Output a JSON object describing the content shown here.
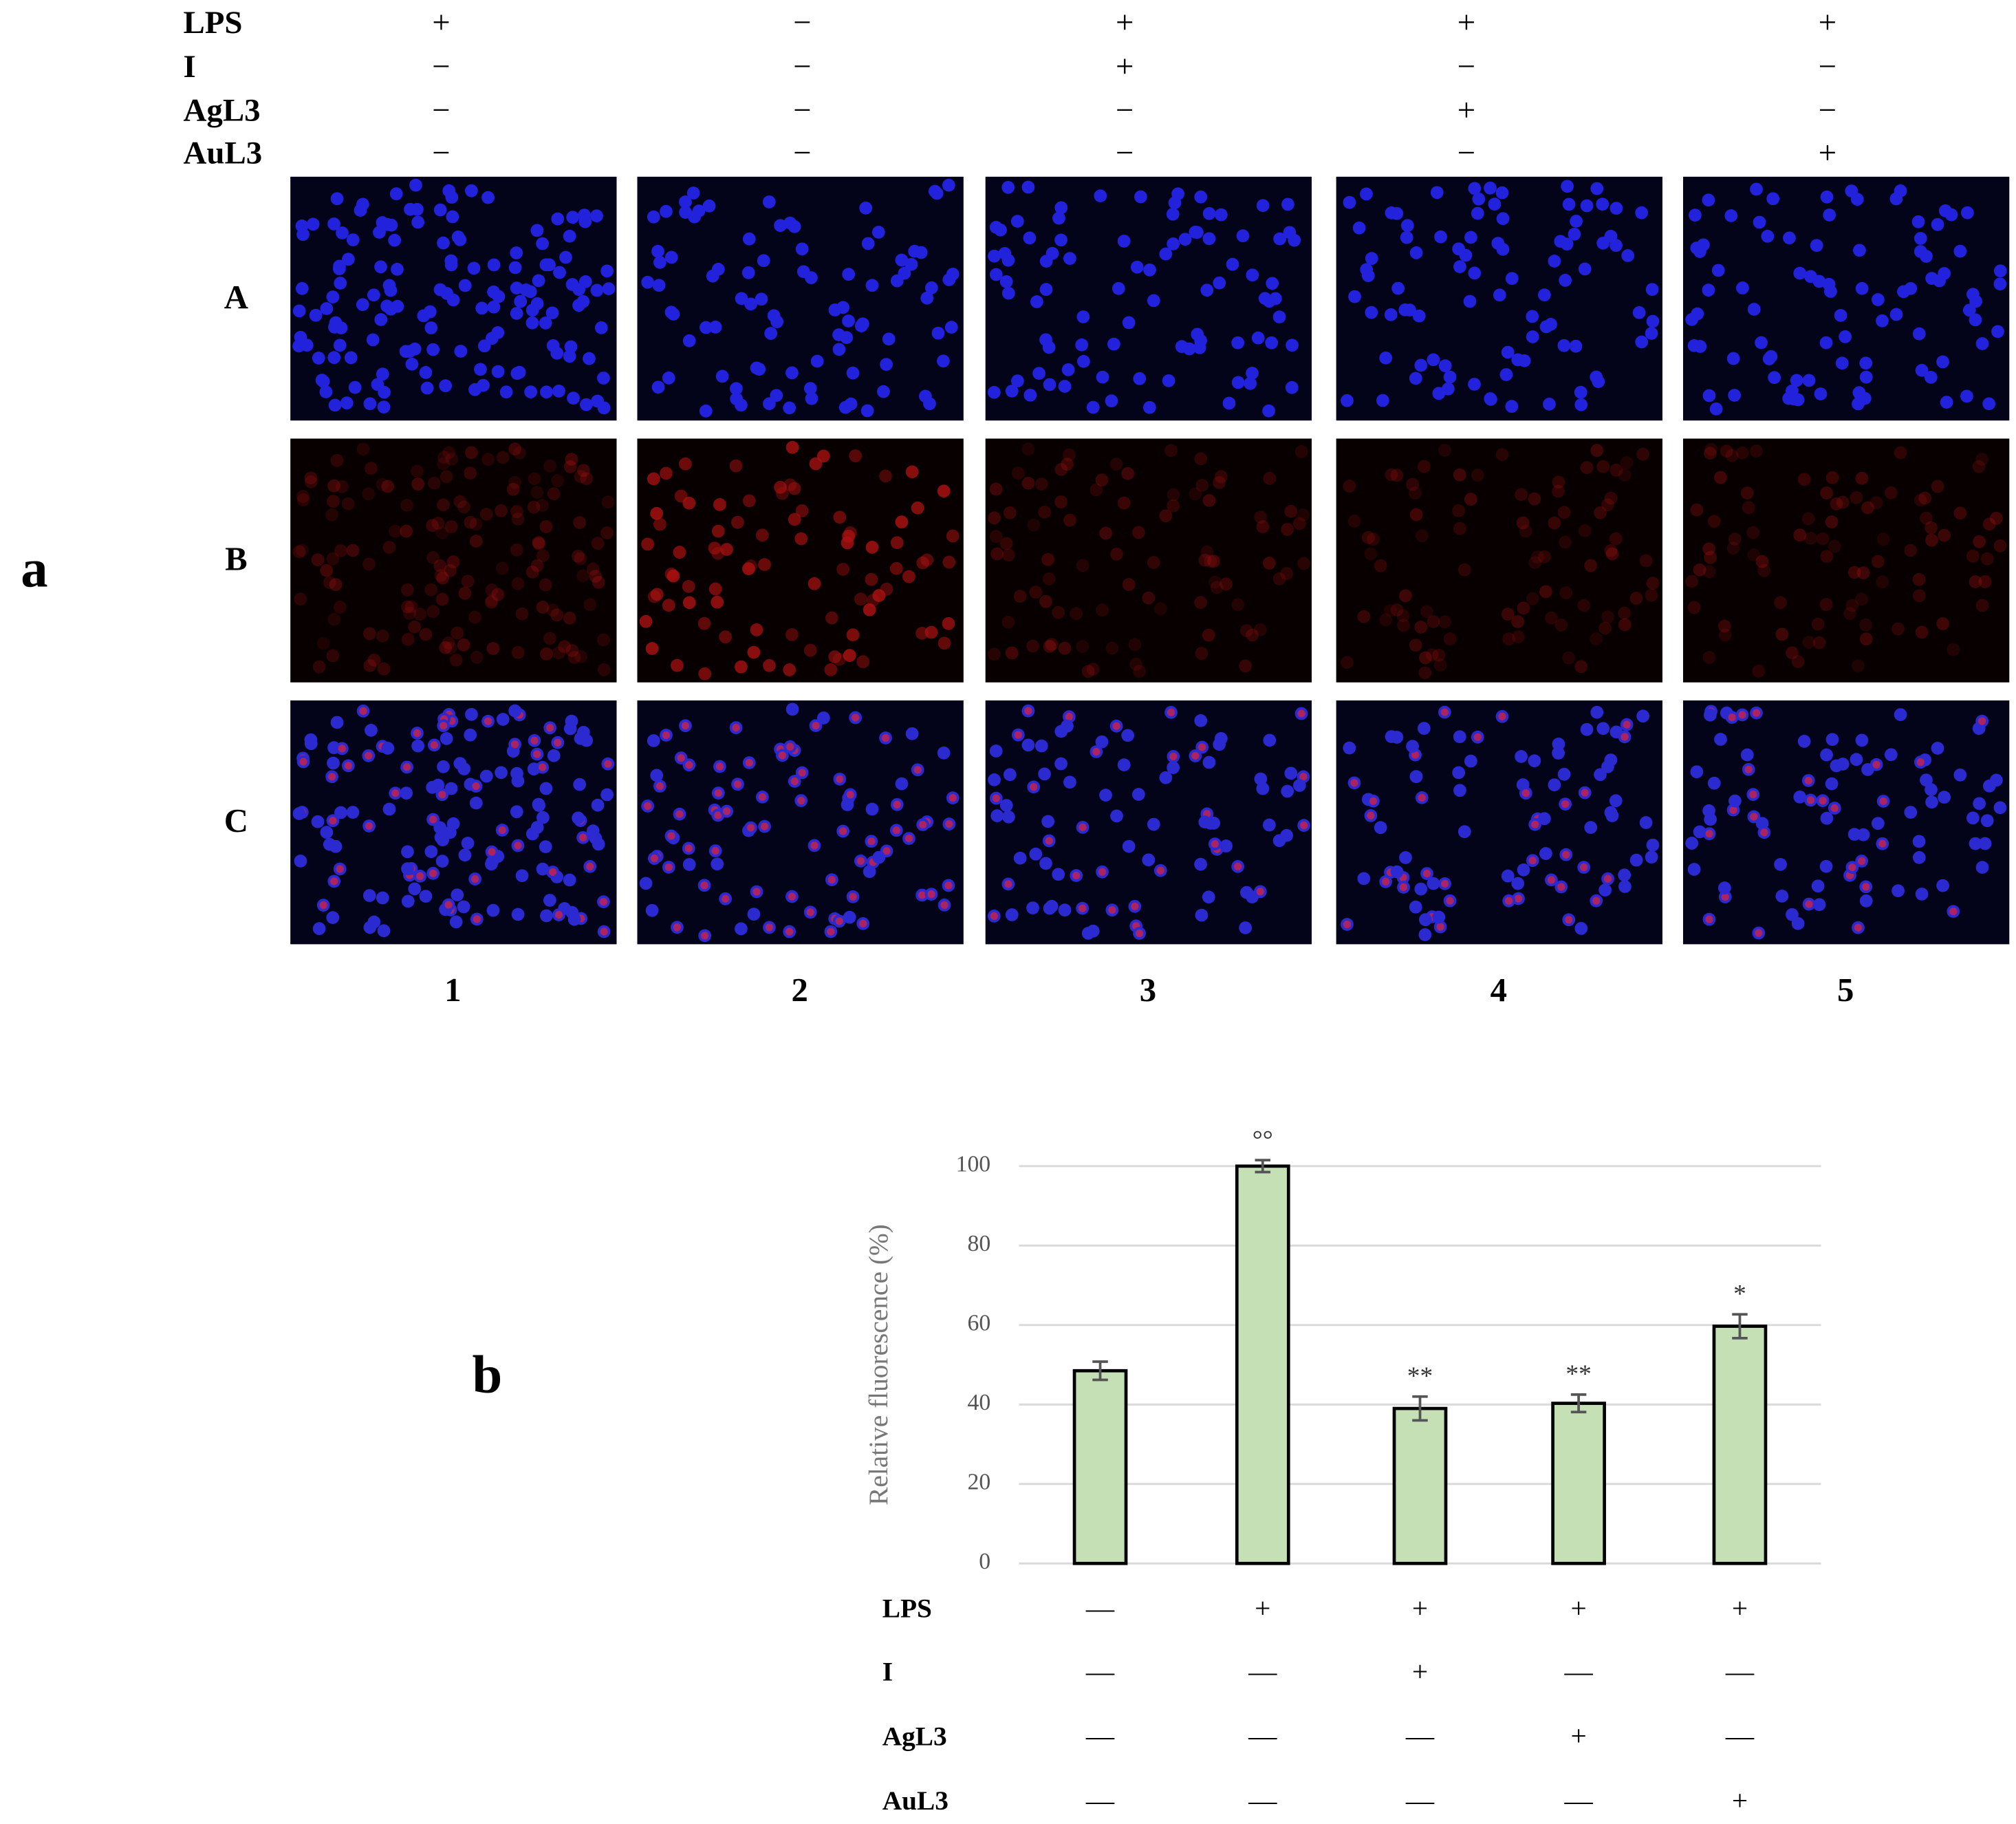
{
  "panel_a": {
    "label": "a",
    "treatments": [
      {
        "name": "LPS",
        "signs": [
          "+",
          "−",
          "+",
          "+",
          "+"
        ]
      },
      {
        "name": "I",
        "signs": [
          "−",
          "−",
          "+",
          "−",
          "−"
        ]
      },
      {
        "name": "AgL3",
        "signs": [
          "−",
          "−",
          "−",
          "+",
          "−"
        ]
      },
      {
        "name": "AuL3",
        "signs": [
          "−",
          "−",
          "−",
          "−",
          "+"
        ]
      }
    ],
    "rows": [
      "A",
      "B",
      "C"
    ],
    "columns": [
      "1",
      "2",
      "3",
      "4",
      "5"
    ]
  },
  "panel_b": {
    "label": "b"
  },
  "chart_data": {
    "type": "bar",
    "y_label": "Relative fluorescence (%)",
    "values": [
      48.5,
      100,
      39,
      40.3,
      59.7
    ],
    "errors": [
      2.3,
      1.5,
      3,
      2.2,
      3
    ],
    "annotations": [
      null,
      "°°",
      "**",
      "**",
      "*"
    ],
    "color": "#c5e0b4",
    "ylim": [
      0,
      100
    ],
    "yticks": [
      0,
      20,
      40,
      60,
      80,
      100
    ],
    "grid": true,
    "treatments": [
      {
        "name": "LPS",
        "signs": [
          "—",
          "+",
          "+",
          "+",
          "+"
        ]
      },
      {
        "name": "I",
        "signs": [
          "—",
          "—",
          "+",
          "—",
          "—"
        ]
      },
      {
        "name": "AgL3",
        "signs": [
          "—",
          "—",
          "—",
          "+",
          "—"
        ]
      },
      {
        "name": "AuL3",
        "signs": [
          "—",
          "—",
          "—",
          "—",
          "+"
        ]
      }
    ]
  }
}
